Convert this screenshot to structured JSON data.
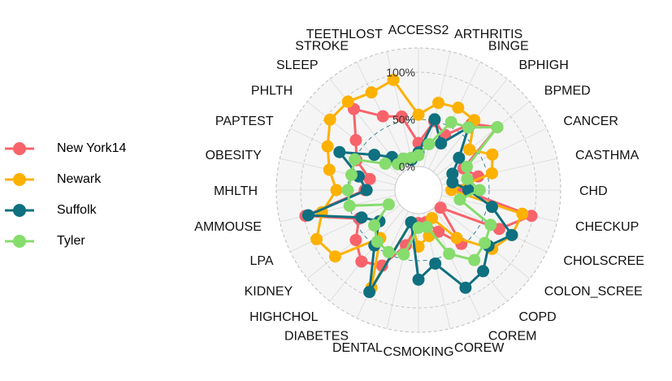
{
  "chart_data": {
    "type": "radar",
    "categories": [
      "ACCESS2",
      "ARTHRITIS",
      "BINGE",
      "BPHIGH",
      "BPMED",
      "CANCER",
      "CASTHMA",
      "CHD",
      "CHECKUP",
      "CHOLSCREEN",
      "COLON_SCREEN",
      "COPD",
      "COREM",
      "COREW",
      "CSMOKING",
      "DENTAL",
      "DIABETES",
      "HIGHCHOL",
      "KIDNEY",
      "LPA",
      "AMMOUSE",
      "MHLTH",
      "OBESITY",
      "PAPTEST",
      "PHLTH",
      "SLEEP",
      "STROKE",
      "TEETHLOST"
    ],
    "category_labels": [
      "ACCESS2",
      "ARTHRITIS",
      "BINGE",
      "BPHIGH",
      "BPMED",
      "CANCER",
      "CASTHMA",
      "CHD",
      "CHECKUP",
      "CHOLSCREE",
      "COLON_SCREE",
      "COPD",
      "COREM",
      "COREW",
      "CSMOKING",
      "DENTAL",
      "DIABETES",
      "HIGHCHOL",
      "KIDNEY",
      "LPA",
      "AMMOUSE",
      "MHLTH",
      "OBESITY",
      "PAPTEST",
      "PHLTH",
      "SLEEP",
      "STROKE",
      "TEETHLOST"
    ],
    "radial_ticks": [
      "0%",
      "50%",
      "100%"
    ],
    "rlim": [
      0,
      100
    ],
    "inner_hole": 0.2,
    "legend_position": "left",
    "series": [
      {
        "name": "New York14",
        "color": "#F8636B",
        "values": [
          25,
          50,
          40,
          65,
          82,
          28,
          40,
          22,
          98,
          70,
          5,
          48,
          24,
          10,
          10,
          35,
          64,
          72,
          60,
          45,
          98,
          32,
          28,
          48,
          60,
          85,
          62,
          55
        ]
      },
      {
        "name": "Newark",
        "color": "#FDB100",
        "values": [
          55,
          70,
          72,
          70,
          44,
          62,
          55,
          10,
          88,
          85,
          75,
          40,
          8,
          25,
          35,
          10,
          90,
          40,
          88,
          95,
          80,
          62,
          72,
          82,
          95,
          95,
          90,
          95
        ]
      },
      {
        "name": "Suffolk",
        "color": "#0F7080",
        "values": [
          15,
          52,
          30,
          60,
          30,
          15,
          12,
          28,
          55,
          85,
          70,
          85,
          90,
          55,
          70,
          10,
          95,
          50,
          28,
          42,
          95,
          30,
          40,
          68,
          35,
          20,
          12,
          8
        ]
      },
      {
        "name": "Tyler",
        "color": "#86DC6D",
        "values": [
          12,
          25,
          55,
          60,
          82,
          32,
          28,
          40,
          20,
          60,
          65,
          70,
          50,
          15,
          15,
          45,
          48,
          45,
          35,
          10,
          50,
          50,
          48,
          50,
          20,
          10,
          12,
          10
        ]
      }
    ]
  }
}
